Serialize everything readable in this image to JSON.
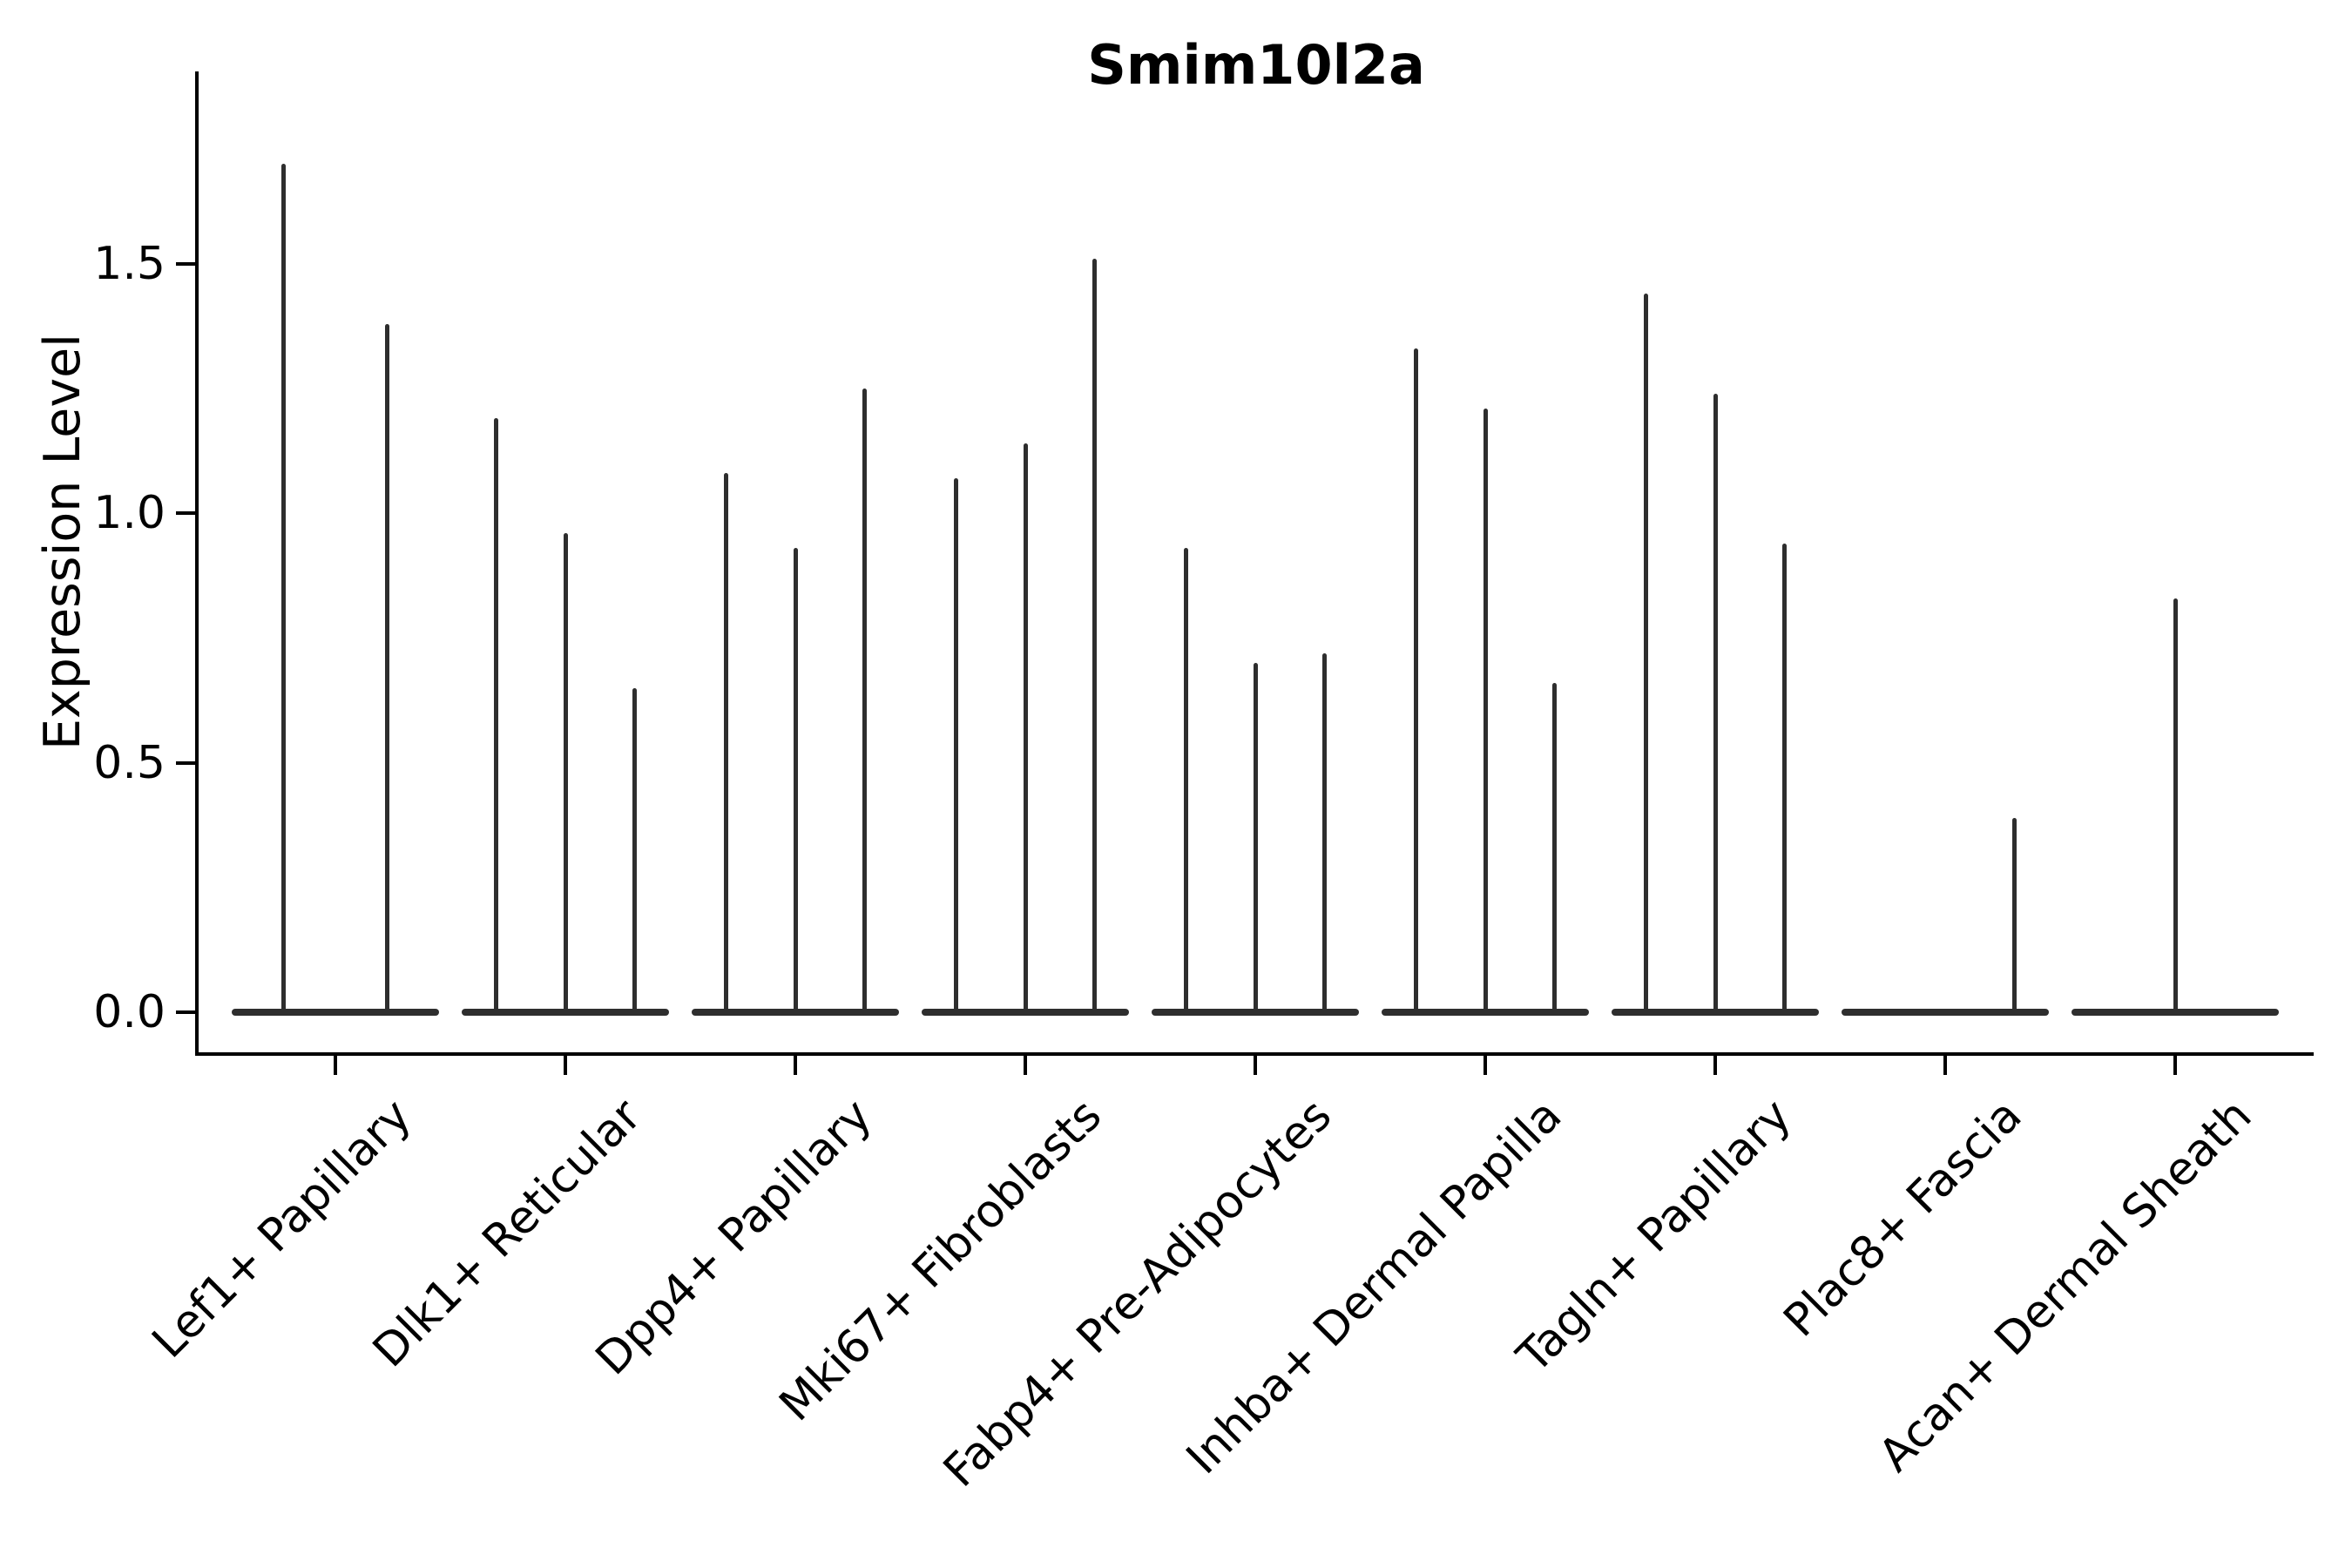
{
  "title": "Smim10l2a",
  "axes": {
    "ylabel": "Expression Level",
    "ytick_labels": [
      "0.0",
      "0.5",
      "1.0",
      "1.5"
    ]
  },
  "colors": {
    "violin": "#2e2e2e",
    "axis": "#000000",
    "text": "#000000",
    "background": "#ffffff"
  },
  "chart_data": {
    "type": "violin",
    "title": "Smim10l2a",
    "xlabel": "",
    "ylabel": "Expression Level",
    "ylim": [
      -0.08,
      1.89
    ],
    "yticks": [
      0.0,
      0.5,
      1.0,
      1.5
    ],
    "grid": false,
    "legend": "none",
    "description": "Sparse single-cell expression violin plot: each category holds narrow violins flat at 0 with thin spikes reaching the maximum expression value; a value of 0 means a flat violin with no spike.",
    "categories": [
      "Lef1+ Papillary",
      "Dlk1+ Reticular",
      "Dpp4+ Papillary",
      "Mki67+ Fibroblasts",
      "Fabp4+ Pre-Adipocytes",
      "Inhba+ Dermal Papilla",
      "Tagln+ Papillary",
      "Plac8+ Fascia",
      "Acan+ Dermal Sheath"
    ],
    "series": [
      {
        "category": "Lef1+ Papillary",
        "violin_max_values": [
          1.7,
          1.38
        ]
      },
      {
        "category": "Dlk1+ Reticular",
        "violin_max_values": [
          1.19,
          0.96,
          0.65
        ]
      },
      {
        "category": "Dpp4+ Papillary",
        "violin_max_values": [
          1.08,
          0.93,
          1.25
        ]
      },
      {
        "category": "Mki67+ Fibroblasts",
        "violin_max_values": [
          1.07,
          1.14,
          1.51
        ]
      },
      {
        "category": "Fabp4+ Pre-Adipocytes",
        "violin_max_values": [
          0.93,
          0.7,
          0.72
        ]
      },
      {
        "category": "Inhba+ Dermal Papilla",
        "violin_max_values": [
          1.33,
          1.21,
          0.66
        ]
      },
      {
        "category": "Tagln+ Papillary",
        "violin_max_values": [
          1.44,
          1.24,
          0.94
        ]
      },
      {
        "category": "Plac8+ Fascia",
        "violin_max_values": [
          0.0,
          0.0,
          0.39
        ]
      },
      {
        "category": "Acan+ Dermal Sheath",
        "violin_max_values": [
          0.0,
          0.83,
          0.0
        ]
      }
    ]
  }
}
